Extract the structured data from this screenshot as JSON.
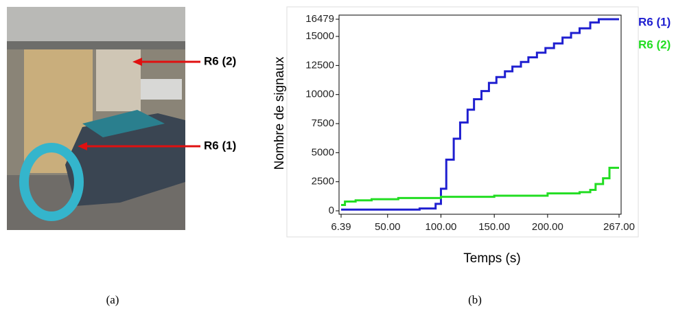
{
  "photo_labels": [
    "R6 (2)",
    "R6 (1)"
  ],
  "captions": [
    "(a)",
    "(b)"
  ],
  "chart_data": {
    "type": "line",
    "xlabel": "Temps (s)",
    "ylabel": "Nombre de signaux",
    "xlim": [
      6.39,
      267
    ],
    "ylim": [
      0,
      16479
    ],
    "xticks": [
      6.39,
      {
        "value": 50,
        "label": "50.00"
      },
      {
        "value": 100,
        "label": "100.00"
      },
      {
        "value": 150,
        "label": "150.00"
      },
      {
        "value": 200,
        "label": "200.00"
      },
      {
        "value": 267,
        "label": "267.00"
      }
    ],
    "yticks": [
      0,
      2500,
      5000,
      7500,
      10000,
      12500,
      15000,
      16479
    ],
    "series": [
      {
        "name": "R6 (1)",
        "color": "#1f1fd0",
        "x": [
          6.39,
          80,
          80,
          95,
          95,
          100,
          100,
          105,
          105,
          112,
          112,
          118,
          118,
          125,
          125,
          131,
          131,
          138,
          138,
          145,
          145,
          152,
          152,
          160,
          160,
          167,
          167,
          175,
          175,
          182,
          182,
          190,
          190,
          198,
          198,
          206,
          206,
          214,
          214,
          222,
          222,
          230,
          230,
          240,
          240,
          248,
          248,
          267
        ],
        "values": [
          100,
          100,
          200,
          200,
          600,
          600,
          1900,
          1900,
          4400,
          4400,
          6200,
          6200,
          7600,
          7600,
          8700,
          8700,
          9600,
          9600,
          10300,
          10300,
          11000,
          11000,
          11500,
          11500,
          12000,
          12000,
          12400,
          12400,
          12800,
          12800,
          13200,
          13200,
          13600,
          13600,
          14000,
          14000,
          14400,
          14400,
          14900,
          14900,
          15300,
          15300,
          15700,
          15700,
          16200,
          16200,
          16479,
          16479
        ]
      },
      {
        "name": "R6 (2)",
        "color": "#22dd22",
        "x": [
          6.39,
          10,
          10,
          20,
          20,
          35,
          35,
          60,
          60,
          100,
          100,
          150,
          150,
          200,
          200,
          230,
          230,
          240,
          240,
          245,
          245,
          252,
          252,
          258,
          258,
          267
        ],
        "values": [
          500,
          500,
          800,
          800,
          900,
          900,
          1000,
          1000,
          1100,
          1100,
          1200,
          1200,
          1300,
          1300,
          1500,
          1500,
          1600,
          1600,
          1800,
          1800,
          2300,
          2300,
          2800,
          2800,
          3700,
          3700
        ]
      }
    ]
  }
}
